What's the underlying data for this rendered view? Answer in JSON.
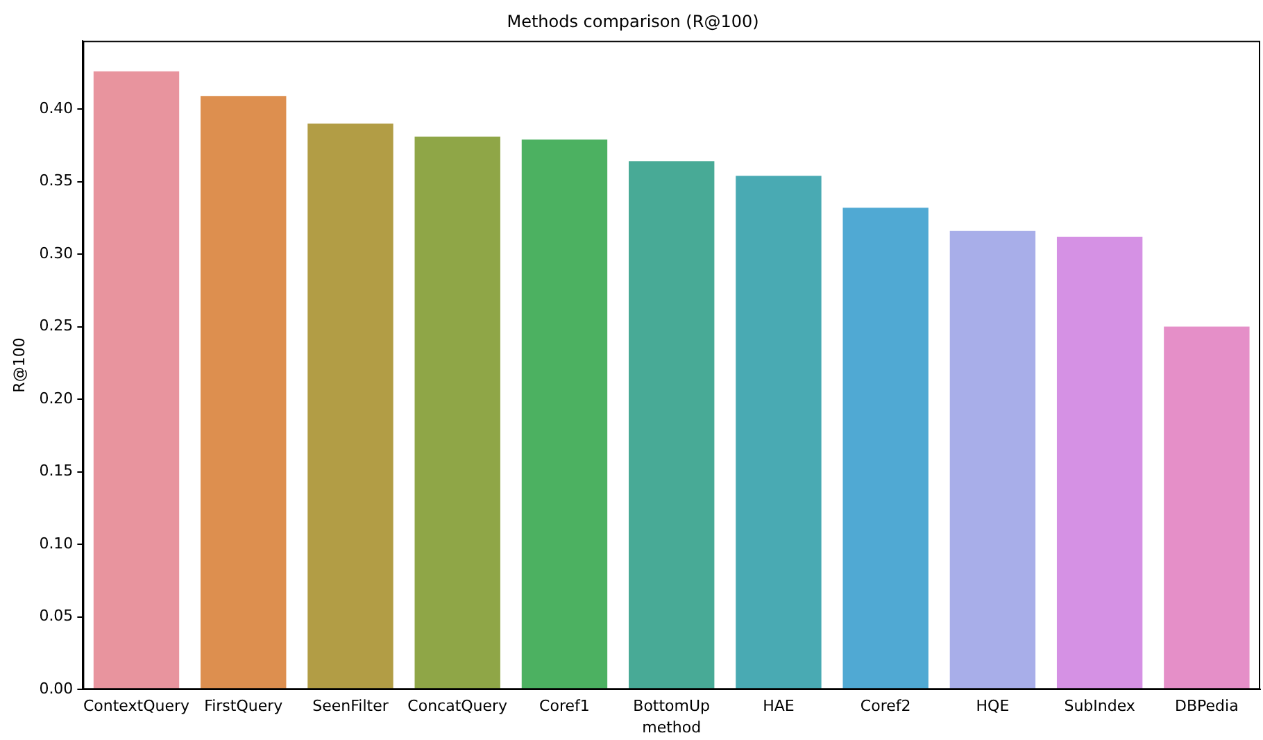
{
  "chart_data": {
    "type": "bar",
    "title": "Methods comparison (R@100)",
    "xlabel": "method",
    "ylabel": "R@100",
    "categories": [
      "ContextQuery",
      "FirstQuery",
      "SeenFilter",
      "ConcatQuery",
      "Coref1",
      "BottomUp",
      "HAE",
      "Coref2",
      "HQE",
      "SubIndex",
      "DBPedia"
    ],
    "values": [
      0.426,
      0.409,
      0.39,
      0.381,
      0.379,
      0.364,
      0.354,
      0.332,
      0.316,
      0.312,
      0.25
    ],
    "colors": [
      "#e8949e",
      "#dd8f4f",
      "#b29d45",
      "#8fa647",
      "#4cb161",
      "#48aa96",
      "#49aab3",
      "#50a9d3",
      "#a8aee9",
      "#d591e4",
      "#e58fc8"
    ],
    "ylim": [
      0,
      0.447
    ],
    "yticks": [
      {
        "value": 0,
        "label": "0.00"
      },
      {
        "value": 0.05,
        "label": "0.05"
      },
      {
        "value": 0.1,
        "label": "0.10"
      },
      {
        "value": 0.15,
        "label": "0.15"
      },
      {
        "value": 0.2,
        "label": "0.20"
      },
      {
        "value": 0.25,
        "label": "0.25"
      },
      {
        "value": 0.3,
        "label": "0.30"
      },
      {
        "value": 0.35,
        "label": "0.35"
      },
      {
        "value": 0.4,
        "label": "0.40"
      }
    ],
    "grid": false,
    "legend": false
  }
}
